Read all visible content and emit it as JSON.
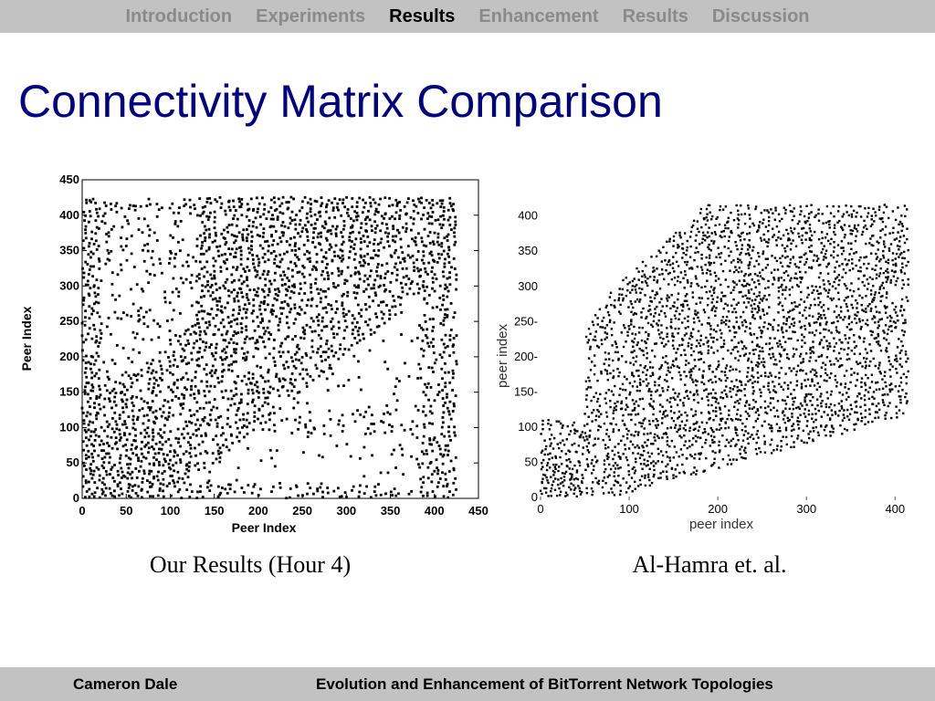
{
  "nav": {
    "items": [
      "Introduction",
      "Experiments",
      "Results",
      "Enhancement",
      "Results",
      "Discussion"
    ],
    "active_index": 2
  },
  "slide": {
    "title": "Connectivity Matrix Comparison"
  },
  "chart_data": [
    {
      "type": "scatter",
      "caption": "Our Results (Hour 4)",
      "xlabel": "Peer Index",
      "ylabel": "Peer Index",
      "xlim": [
        0,
        450
      ],
      "ylim": [
        0,
        450
      ],
      "xticks": [
        "0",
        "50",
        "100",
        "150",
        "200",
        "250",
        "300",
        "350",
        "400",
        "450"
      ],
      "yticks": [
        "0",
        "50",
        "100",
        "150",
        "200",
        "250",
        "300",
        "350",
        "400",
        "450"
      ],
      "grid": false,
      "marker_color": "#000000",
      "description_points": {
        "peer_range": [
          0,
          420
        ],
        "dense_low_block": [
          0,
          100
        ],
        "diagonal": true
      }
    },
    {
      "type": "scatter",
      "caption": "Al-Hamra et. al.",
      "xlabel": "peer index",
      "ylabel": "peer index",
      "xlim": [
        0,
        410
      ],
      "ylim": [
        0,
        410
      ],
      "xticks": [
        "0",
        "100",
        "200",
        "300",
        "400"
      ],
      "yticks": [
        "0",
        "50",
        "100",
        "150",
        "200",
        "250",
        "300",
        "350",
        "400"
      ],
      "grid": false,
      "marker_color": "#000000"
    }
  ],
  "footer": {
    "author": "Cameron Dale",
    "talk_title": "Evolution and Enhancement of BitTorrent Network Topologies"
  }
}
